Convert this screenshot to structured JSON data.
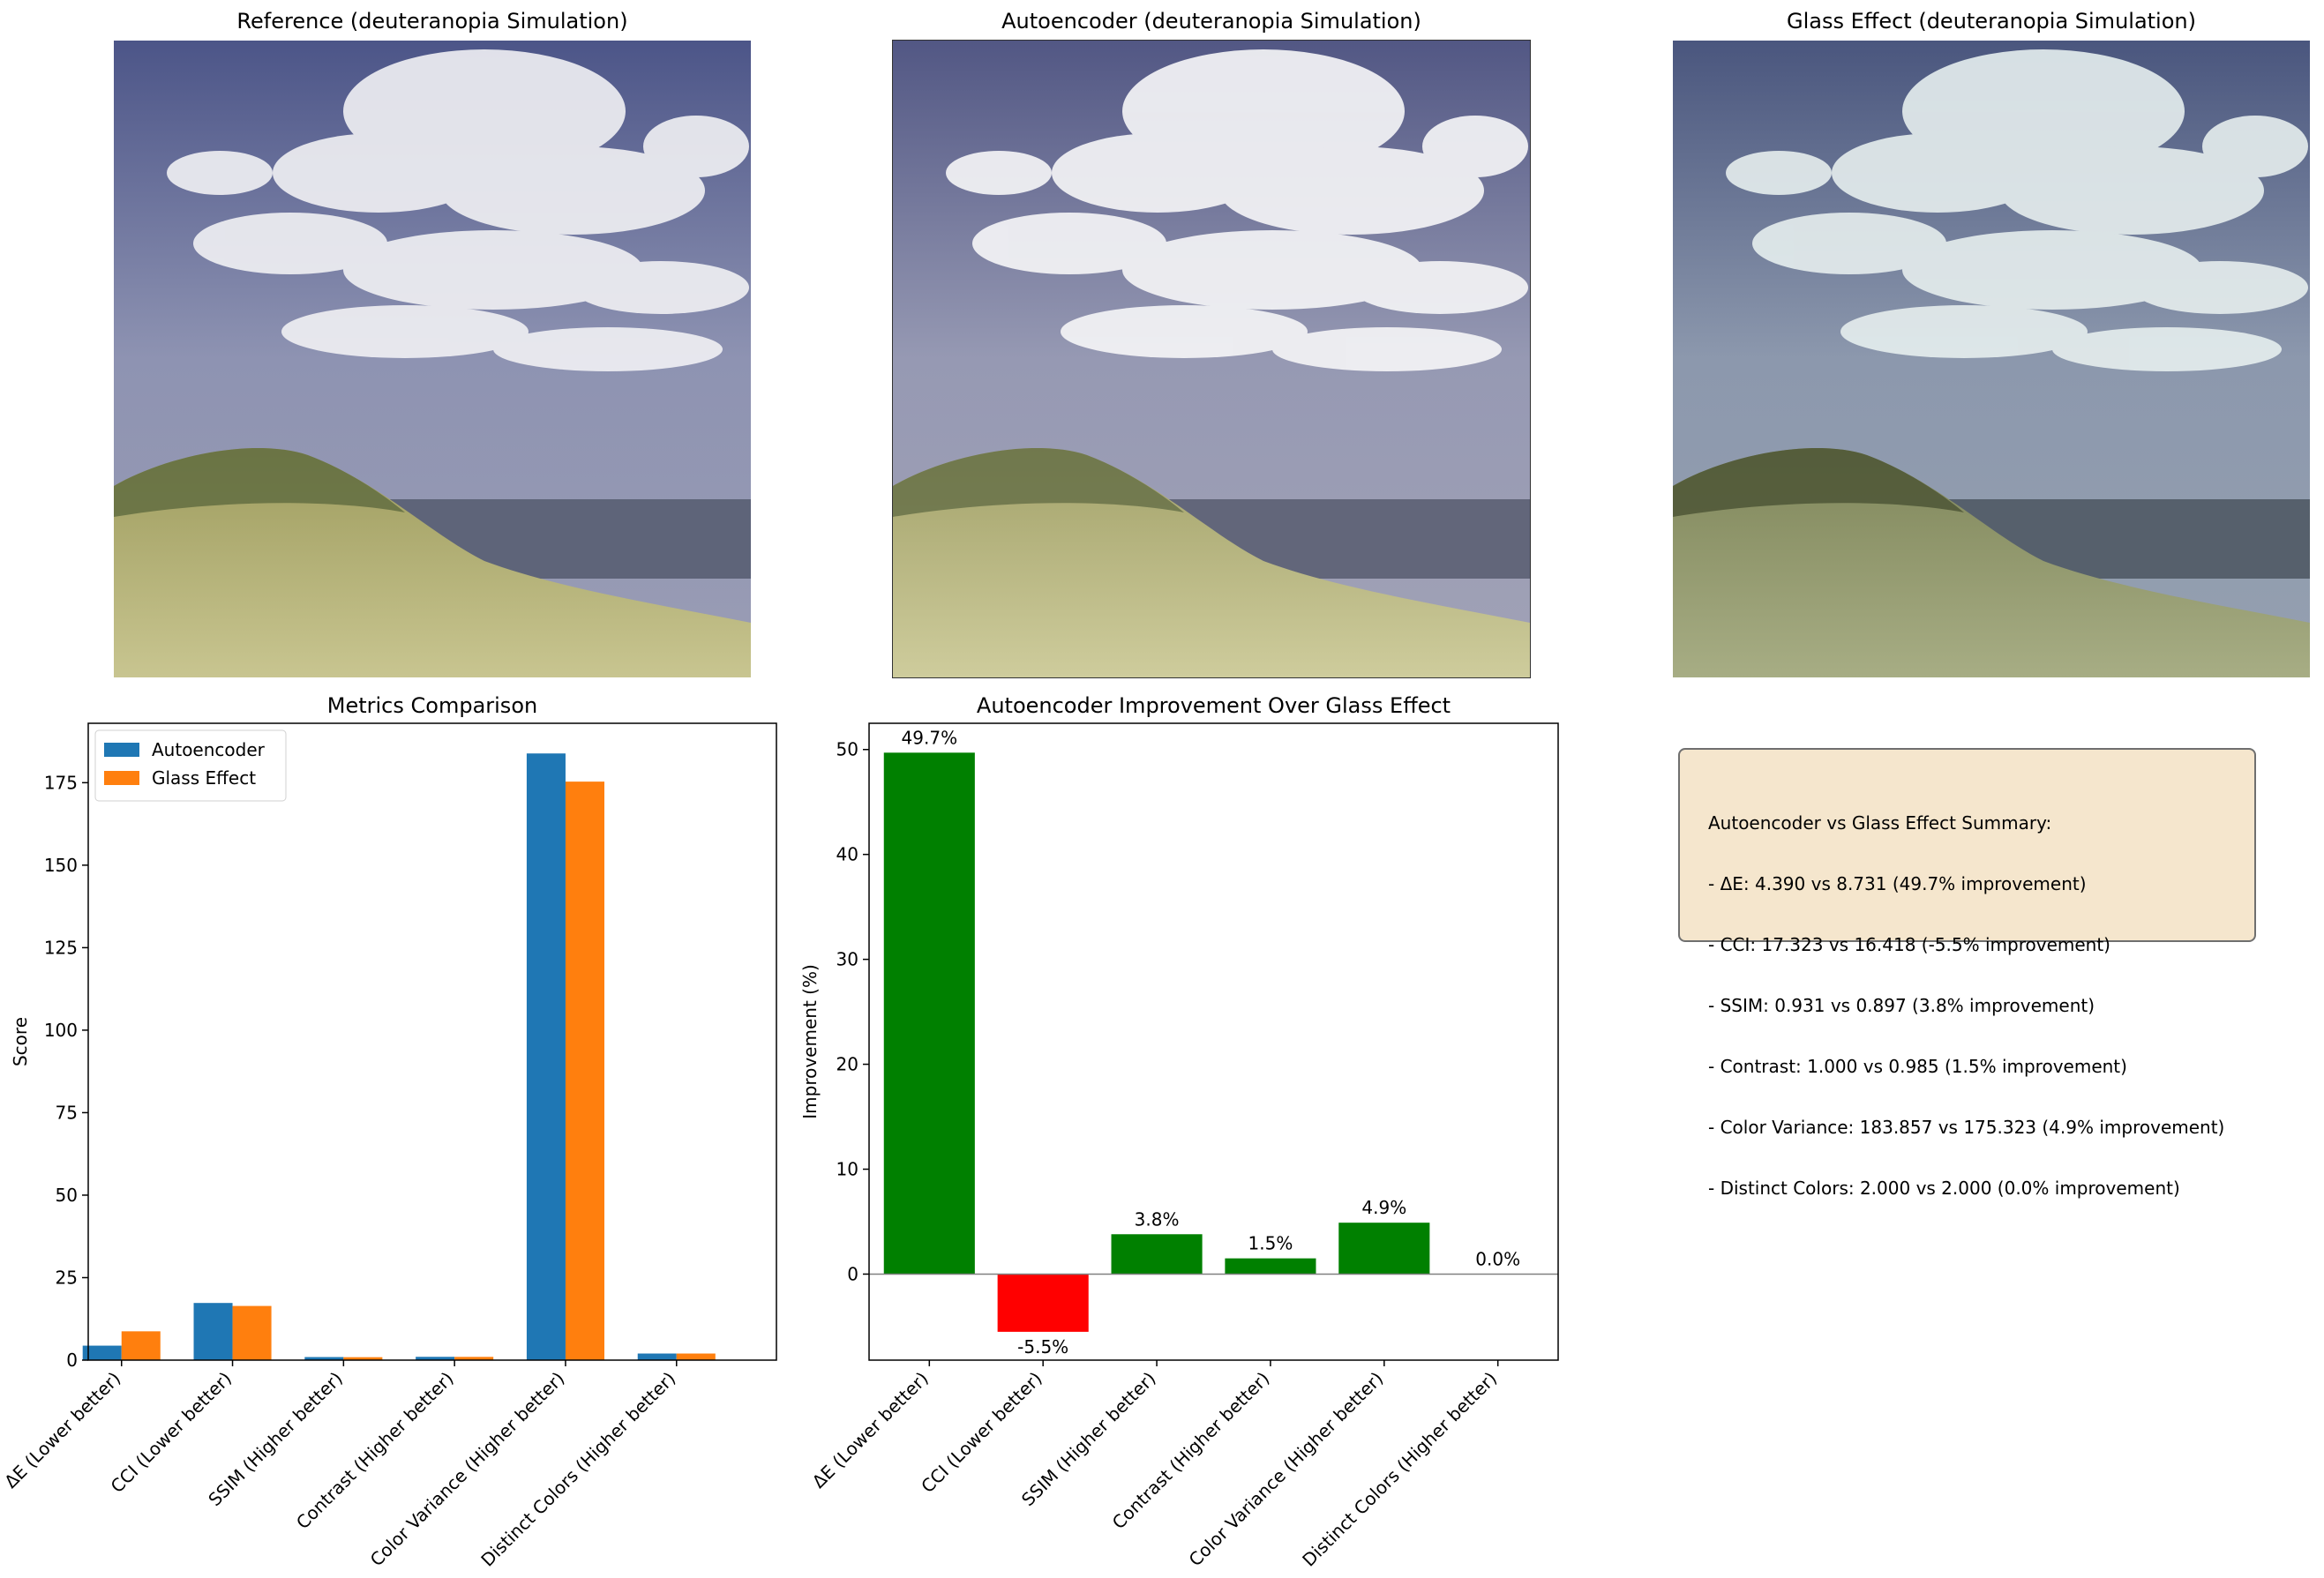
{
  "panels": {
    "reference_title": "Reference (deuteranopia Simulation)",
    "autoencoder_title": "Autoencoder (deuteranopia Simulation)",
    "glass_title": "Glass Effect (deuteranopia Simulation)"
  },
  "colors": {
    "autoencoder": "#1f77b4",
    "glass": "#ff7f0e",
    "positive": "#008000",
    "negative": "#ff0000",
    "sky": "#5a6190",
    "sand": "#b9b67a",
    "summary_bg": "#f5e6cd"
  },
  "chart_data": [
    {
      "type": "bar",
      "title": "Metrics Comparison",
      "xlabel": "",
      "ylabel": "Score",
      "categories": [
        "ΔE (Lower better)",
        "CCI (Lower better)",
        "SSIM (Higher better)",
        "Contrast (Higher better)",
        "Color Variance (Higher better)",
        "Distinct Colors (Higher better)"
      ],
      "series": [
        {
          "name": "Autoencoder",
          "values": [
            4.39,
            17.323,
            0.931,
            1.0,
            183.857,
            2.0
          ]
        },
        {
          "name": "Glass Effect",
          "values": [
            8.731,
            16.418,
            0.897,
            0.985,
            175.323,
            2.0
          ]
        }
      ],
      "ylim": [
        0,
        193
      ],
      "yticks": [
        0,
        25,
        50,
        75,
        100,
        125,
        150,
        175
      ],
      "legend": "top-left",
      "grid": false
    },
    {
      "type": "bar",
      "title": "Autoencoder Improvement Over Glass Effect",
      "xlabel": "",
      "ylabel": "Improvement (%)",
      "categories": [
        "ΔE (Lower better)",
        "CCI (Lower better)",
        "SSIM (Higher better)",
        "Contrast (Higher better)",
        "Color Variance (Higher better)",
        "Distinct Colors (Higher better)"
      ],
      "values": [
        49.7,
        -5.5,
        3.8,
        1.5,
        4.9,
        0.0
      ],
      "labels": [
        "49.7%",
        "-5.5%",
        "3.8%",
        "1.5%",
        "4.9%",
        "0.0%"
      ],
      "ylim": [
        -8.2,
        52.5
      ],
      "yticks": [
        0,
        10,
        20,
        30,
        40,
        50
      ],
      "grid": false
    }
  ],
  "summary": {
    "lines": [
      "Autoencoder vs Glass Effect Summary:",
      "- ΔE: 4.390 vs 8.731 (49.7% improvement)",
      "- CCI: 17.323 vs 16.418 (-5.5% improvement)",
      "- SSIM: 0.931 vs 0.897 (3.8% improvement)",
      "- Contrast: 1.000 vs 0.985 (1.5% improvement)",
      "- Color Variance: 183.857 vs 175.323 (4.9% improvement)",
      "- Distinct Colors: 2.000 vs 2.000 (0.0% improvement)"
    ]
  }
}
